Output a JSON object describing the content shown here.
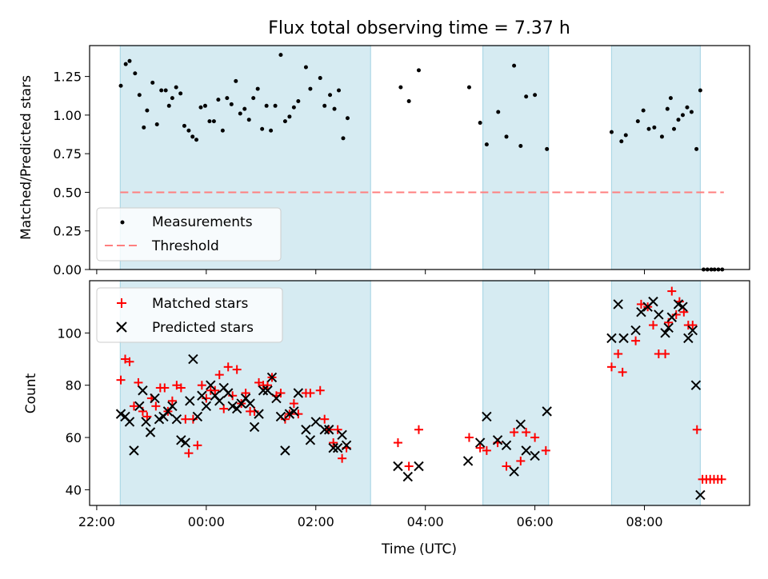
{
  "chart_data": {
    "title": "Flux total observing time = 7.37 h",
    "xlabel": "Time (UTC)",
    "x_ticks": [
      "22:00",
      "00:00",
      "02:00",
      "04:00",
      "06:00",
      "08:00"
    ],
    "colors": {
      "band": "#add8e6",
      "measure": "#000000",
      "threshold": "#ff7f7f",
      "matched": "#ff0000",
      "predicted": "#000000"
    },
    "bands": [
      [
        22.43,
        27.0
      ],
      [
        29.05,
        30.25
      ],
      [
        31.4,
        33.02
      ]
    ],
    "top": {
      "type": "scatter",
      "ylabel": "Matched/Predicted stars",
      "ylim": [
        0,
        1.45
      ],
      "y_ticks": [
        "0.00",
        "0.25",
        "0.50",
        "0.75",
        "1.00",
        "1.25"
      ],
      "threshold": {
        "x": [
          22.43,
          33.45
        ],
        "y": 0.5
      },
      "legend": [
        "Measurements",
        "Threshold"
      ],
      "points": [
        [
          22.44,
          1.19
        ],
        [
          22.53,
          1.33
        ],
        [
          22.6,
          1.35
        ],
        [
          22.7,
          1.27
        ],
        [
          22.78,
          1.13
        ],
        [
          22.86,
          0.92
        ],
        [
          22.92,
          1.03
        ],
        [
          23.02,
          1.21
        ],
        [
          23.1,
          0.94
        ],
        [
          23.18,
          1.16
        ],
        [
          23.26,
          1.16
        ],
        [
          23.32,
          1.06
        ],
        [
          23.38,
          1.11
        ],
        [
          23.45,
          1.18
        ],
        [
          23.53,
          1.14
        ],
        [
          23.6,
          0.93
        ],
        [
          23.68,
          0.9
        ],
        [
          23.75,
          0.86
        ],
        [
          23.82,
          0.84
        ],
        [
          23.9,
          1.05
        ],
        [
          23.98,
          1.06
        ],
        [
          24.06,
          0.96
        ],
        [
          24.14,
          0.96
        ],
        [
          24.22,
          1.1
        ],
        [
          24.3,
          0.9
        ],
        [
          24.38,
          1.11
        ],
        [
          24.46,
          1.07
        ],
        [
          24.54,
          1.22
        ],
        [
          24.62,
          1.01
        ],
        [
          24.7,
          1.04
        ],
        [
          24.78,
          0.97
        ],
        [
          24.86,
          1.11
        ],
        [
          24.94,
          1.17
        ],
        [
          25.02,
          0.91
        ],
        [
          25.1,
          1.06
        ],
        [
          25.18,
          0.9
        ],
        [
          25.26,
          1.06
        ],
        [
          25.36,
          1.39
        ],
        [
          25.44,
          0.96
        ],
        [
          25.52,
          0.99
        ],
        [
          25.6,
          1.05
        ],
        [
          25.68,
          1.09
        ],
        [
          25.82,
          1.31
        ],
        [
          25.9,
          1.17
        ],
        [
          26.08,
          1.24
        ],
        [
          26.16,
          1.06
        ],
        [
          26.26,
          1.13
        ],
        [
          26.34,
          1.04
        ],
        [
          26.42,
          1.16
        ],
        [
          26.5,
          0.85
        ],
        [
          26.58,
          0.98
        ],
        [
          27.55,
          1.18
        ],
        [
          27.7,
          1.09
        ],
        [
          27.88,
          1.29
        ],
        [
          28.8,
          1.18
        ],
        [
          29.0,
          0.95
        ],
        [
          29.12,
          0.81
        ],
        [
          29.33,
          1.02
        ],
        [
          29.48,
          0.86
        ],
        [
          29.62,
          1.32
        ],
        [
          29.74,
          0.8
        ],
        [
          29.84,
          1.12
        ],
        [
          30.0,
          1.13
        ],
        [
          30.22,
          0.78
        ],
        [
          31.4,
          0.89
        ],
        [
          31.58,
          0.83
        ],
        [
          31.66,
          0.87
        ],
        [
          31.88,
          0.96
        ],
        [
          31.98,
          1.03
        ],
        [
          32.08,
          0.91
        ],
        [
          32.18,
          0.92
        ],
        [
          32.32,
          0.86
        ],
        [
          32.42,
          1.04
        ],
        [
          32.48,
          1.11
        ],
        [
          32.54,
          0.91
        ],
        [
          32.62,
          0.97
        ],
        [
          32.7,
          1.0
        ],
        [
          32.78,
          1.05
        ],
        [
          32.86,
          1.02
        ],
        [
          32.95,
          0.78
        ],
        [
          33.02,
          1.16
        ],
        [
          33.08,
          0.0
        ],
        [
          33.15,
          0.0
        ],
        [
          33.22,
          0.0
        ],
        [
          33.28,
          0.0
        ],
        [
          33.35,
          0.0
        ],
        [
          33.42,
          0.0
        ]
      ]
    },
    "bottom": {
      "type": "scatter",
      "ylabel": "Count",
      "ylim": [
        34,
        120
      ],
      "y_ticks": [
        "40",
        "60",
        "80",
        "100"
      ],
      "legend": [
        "Matched stars",
        "Predicted stars"
      ],
      "matched": [
        [
          22.44,
          82
        ],
        [
          22.52,
          90
        ],
        [
          22.6,
          89
        ],
        [
          22.68,
          72
        ],
        [
          22.76,
          81
        ],
        [
          22.84,
          70
        ],
        [
          22.92,
          68
        ],
        [
          23.0,
          75
        ],
        [
          23.08,
          72
        ],
        [
          23.16,
          79
        ],
        [
          23.24,
          79
        ],
        [
          23.3,
          70
        ],
        [
          23.38,
          74
        ],
        [
          23.46,
          80
        ],
        [
          23.54,
          79
        ],
        [
          23.62,
          67
        ],
        [
          23.68,
          54
        ],
        [
          23.76,
          67
        ],
        [
          23.84,
          57
        ],
        [
          23.92,
          80
        ],
        [
          24.0,
          75
        ],
        [
          24.08,
          78
        ],
        [
          24.16,
          78
        ],
        [
          24.24,
          84
        ],
        [
          24.32,
          71
        ],
        [
          24.4,
          87
        ],
        [
          24.48,
          76
        ],
        [
          24.56,
          86
        ],
        [
          24.64,
          73
        ],
        [
          24.72,
          77
        ],
        [
          24.8,
          70
        ],
        [
          24.88,
          70
        ],
        [
          24.96,
          81
        ],
        [
          25.04,
          80
        ],
        [
          25.12,
          80
        ],
        [
          25.2,
          83
        ],
        [
          25.28,
          76
        ],
        [
          25.36,
          77
        ],
        [
          25.44,
          67
        ],
        [
          25.52,
          69
        ],
        [
          25.6,
          73
        ],
        [
          25.68,
          69
        ],
        [
          25.82,
          77
        ],
        [
          25.9,
          77
        ],
        [
          26.08,
          78
        ],
        [
          26.16,
          67
        ],
        [
          26.24,
          63
        ],
        [
          26.32,
          58
        ],
        [
          26.4,
          63
        ],
        [
          26.48,
          52
        ],
        [
          26.56,
          56
        ],
        [
          27.5,
          58
        ],
        [
          27.7,
          49
        ],
        [
          27.88,
          63
        ],
        [
          28.8,
          60
        ],
        [
          29.0,
          56
        ],
        [
          29.12,
          55
        ],
        [
          29.32,
          58
        ],
        [
          29.48,
          49
        ],
        [
          29.62,
          62
        ],
        [
          29.74,
          51
        ],
        [
          29.84,
          62
        ],
        [
          30.0,
          60
        ],
        [
          30.2,
          55
        ],
        [
          31.4,
          87
        ],
        [
          31.52,
          92
        ],
        [
          31.6,
          85
        ],
        [
          31.84,
          97
        ],
        [
          31.94,
          111
        ],
        [
          32.06,
          110
        ],
        [
          32.16,
          103
        ],
        [
          32.26,
          92
        ],
        [
          32.38,
          92
        ],
        [
          32.44,
          104
        ],
        [
          32.5,
          116
        ],
        [
          32.58,
          107
        ],
        [
          32.64,
          112
        ],
        [
          32.72,
          108
        ],
        [
          32.8,
          103
        ],
        [
          32.88,
          103
        ],
        [
          32.96,
          63
        ],
        [
          33.06,
          44
        ],
        [
          33.13,
          44
        ],
        [
          33.2,
          44
        ],
        [
          33.27,
          44
        ],
        [
          33.34,
          44
        ],
        [
          33.41,
          44
        ]
      ],
      "predicted": [
        [
          22.44,
          69
        ],
        [
          22.52,
          68
        ],
        [
          22.6,
          66
        ],
        [
          22.68,
          55
        ],
        [
          22.78,
          72
        ],
        [
          22.84,
          78
        ],
        [
          22.9,
          66
        ],
        [
          22.98,
          62
        ],
        [
          23.06,
          75
        ],
        [
          23.14,
          67
        ],
        [
          23.22,
          68
        ],
        [
          23.3,
          70
        ],
        [
          23.38,
          72
        ],
        [
          23.46,
          67
        ],
        [
          23.54,
          59
        ],
        [
          23.62,
          58
        ],
        [
          23.7,
          74
        ],
        [
          23.76,
          90
        ],
        [
          23.84,
          68
        ],
        [
          23.92,
          76
        ],
        [
          24.0,
          72
        ],
        [
          24.08,
          80
        ],
        [
          24.16,
          76
        ],
        [
          24.24,
          74
        ],
        [
          24.32,
          79
        ],
        [
          24.4,
          77
        ],
        [
          24.48,
          72
        ],
        [
          24.56,
          71
        ],
        [
          24.64,
          73
        ],
        [
          24.72,
          75
        ],
        [
          24.8,
          73
        ],
        [
          24.88,
          64
        ],
        [
          24.96,
          69
        ],
        [
          25.04,
          78
        ],
        [
          25.12,
          78
        ],
        [
          25.2,
          83
        ],
        [
          25.28,
          75
        ],
        [
          25.36,
          68
        ],
        [
          25.44,
          55
        ],
        [
          25.52,
          69
        ],
        [
          25.6,
          70
        ],
        [
          25.68,
          77
        ],
        [
          25.82,
          63
        ],
        [
          25.9,
          59
        ],
        [
          26.0,
          66
        ],
        [
          26.16,
          63
        ],
        [
          26.24,
          63
        ],
        [
          26.32,
          56
        ],
        [
          26.4,
          56
        ],
        [
          26.48,
          61
        ],
        [
          26.56,
          57
        ],
        [
          27.5,
          49
        ],
        [
          27.68,
          45
        ],
        [
          27.88,
          49
        ],
        [
          28.78,
          51
        ],
        [
          29.0,
          58
        ],
        [
          29.12,
          68
        ],
        [
          29.32,
          59
        ],
        [
          29.48,
          57
        ],
        [
          29.62,
          47
        ],
        [
          29.74,
          65
        ],
        [
          29.84,
          55
        ],
        [
          30.0,
          53
        ],
        [
          30.22,
          70
        ],
        [
          31.4,
          98
        ],
        [
          31.52,
          111
        ],
        [
          31.62,
          98
        ],
        [
          31.84,
          101
        ],
        [
          31.94,
          108
        ],
        [
          32.06,
          110
        ],
        [
          32.16,
          112
        ],
        [
          32.26,
          107
        ],
        [
          32.38,
          100
        ],
        [
          32.44,
          102
        ],
        [
          32.5,
          106
        ],
        [
          32.62,
          111
        ],
        [
          32.7,
          110
        ],
        [
          32.8,
          98
        ],
        [
          32.88,
          101
        ],
        [
          32.94,
          80
        ],
        [
          33.02,
          38
        ]
      ]
    }
  }
}
